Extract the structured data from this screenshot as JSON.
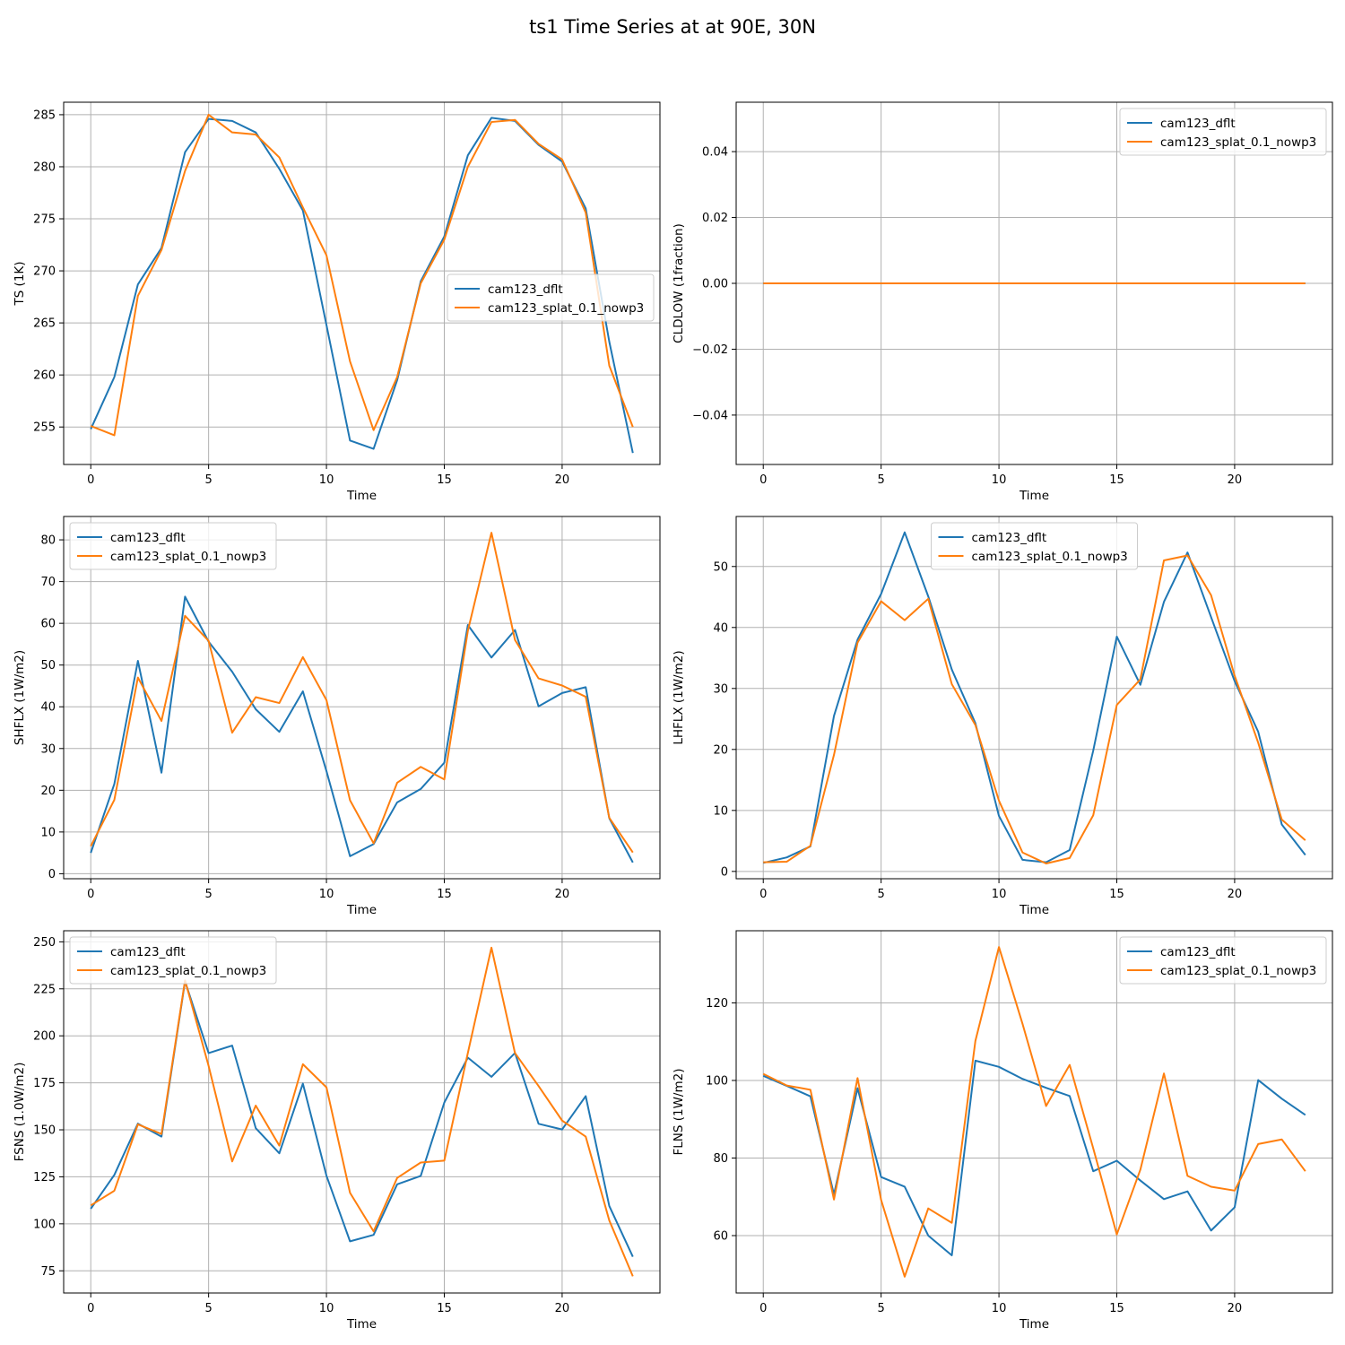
{
  "figure": {
    "title": "ts1 Time Series at at 90E, 30N"
  },
  "colors": {
    "series1": "#1f77b4",
    "series2": "#ff7f0e",
    "grid": "#b0b0b0",
    "axis": "#000000"
  },
  "chart_data": [
    {
      "type": "line",
      "xlabel": "Time",
      "ylabel": "TS (1K)",
      "xlim": [
        -1.15,
        24.15
      ],
      "ylim": [
        251.4,
        286.2
      ],
      "xticks": [
        0,
        5,
        10,
        15,
        20
      ],
      "yticks": [
        255,
        260,
        265,
        270,
        275,
        280,
        285
      ],
      "tick_decimals": 0,
      "grid": true,
      "legend_position": "center-right",
      "x": [
        0,
        1,
        2,
        3,
        4,
        5,
        6,
        7,
        8,
        9,
        10,
        11,
        12,
        13,
        14,
        15,
        16,
        17,
        18,
        19,
        20,
        21,
        22,
        23
      ],
      "series": [
        {
          "name": "cam123_dflt",
          "values": [
            254.8,
            259.8,
            268.7,
            272.2,
            281.4,
            284.6,
            284.4,
            283.3,
            279.8,
            275.8,
            264.8,
            253.7,
            252.9,
            259.5,
            269.0,
            273.3,
            281.1,
            284.7,
            284.4,
            282.1,
            280.5,
            276.0,
            263.2,
            252.5
          ]
        },
        {
          "name": "cam123_splat_0.1_nowp3",
          "values": [
            255.1,
            254.2,
            267.6,
            272.0,
            279.6,
            285.0,
            283.3,
            283.1,
            280.9,
            276.1,
            271.5,
            261.3,
            254.7,
            259.8,
            268.8,
            273.0,
            280.0,
            284.3,
            284.5,
            282.2,
            280.7,
            275.6,
            260.9,
            255.0
          ]
        }
      ]
    },
    {
      "type": "line",
      "xlabel": "Time",
      "ylabel": "CLDLOW (1fraction)",
      "xlim": [
        -1.15,
        24.15
      ],
      "ylim": [
        -0.055,
        0.055
      ],
      "xticks": [
        0,
        5,
        10,
        15,
        20
      ],
      "yticks": [
        -0.04,
        -0.02,
        0.0,
        0.02,
        0.04
      ],
      "tick_decimals": 2,
      "grid": true,
      "legend_position": "upper-right",
      "x": [
        0,
        1,
        2,
        3,
        4,
        5,
        6,
        7,
        8,
        9,
        10,
        11,
        12,
        13,
        14,
        15,
        16,
        17,
        18,
        19,
        20,
        21,
        22,
        23
      ],
      "series": [
        {
          "name": "cam123_dflt",
          "values": [
            0,
            0,
            0,
            0,
            0,
            0,
            0,
            0,
            0,
            0,
            0,
            0,
            0,
            0,
            0,
            0,
            0,
            0,
            0,
            0,
            0,
            0,
            0,
            0
          ]
        },
        {
          "name": "cam123_splat_0.1_nowp3",
          "values": [
            0,
            0,
            0,
            0,
            0,
            0,
            0,
            0,
            0,
            0,
            0,
            0,
            0,
            0,
            0,
            0,
            0,
            0,
            0,
            0,
            0,
            0,
            0,
            0
          ]
        }
      ]
    },
    {
      "type": "line",
      "xlabel": "Time",
      "ylabel": "SHFLX (1W/m2)",
      "xlim": [
        -1.15,
        24.15
      ],
      "ylim": [
        -1.2,
        85.6
      ],
      "xticks": [
        0,
        5,
        10,
        15,
        20
      ],
      "yticks": [
        0,
        10,
        20,
        30,
        40,
        50,
        60,
        70,
        80
      ],
      "tick_decimals": 0,
      "grid": true,
      "legend_position": "upper-left",
      "x": [
        0,
        1,
        2,
        3,
        4,
        5,
        6,
        7,
        8,
        9,
        10,
        11,
        12,
        13,
        14,
        15,
        16,
        17,
        18,
        19,
        20,
        21,
        22,
        23
      ],
      "series": [
        {
          "name": "cam123_dflt",
          "values": [
            5.0,
            21.5,
            51.0,
            24.2,
            66.4,
            55.6,
            48.4,
            39.4,
            34.0,
            43.7,
            24.6,
            4.2,
            7.1,
            17.1,
            20.3,
            26.6,
            59.6,
            51.8,
            58.4,
            40.1,
            43.3,
            44.7,
            13.3,
            2.7
          ]
        },
        {
          "name": "cam123_splat_0.1_nowp3",
          "values": [
            6.6,
            17.7,
            47.0,
            36.6,
            61.8,
            55.8,
            33.8,
            42.3,
            40.9,
            51.9,
            41.6,
            17.6,
            7.3,
            21.8,
            25.6,
            22.6,
            58.2,
            81.7,
            56.0,
            46.8,
            45.1,
            42.4,
            13.4,
            5.1
          ]
        }
      ]
    },
    {
      "type": "line",
      "xlabel": "Time",
      "ylabel": "LHFLX (1W/m2)",
      "xlim": [
        -1.15,
        24.15
      ],
      "ylim": [
        -1.2,
        58.2
      ],
      "xticks": [
        0,
        5,
        10,
        15,
        20
      ],
      "yticks": [
        0,
        10,
        20,
        30,
        40,
        50
      ],
      "tick_decimals": 0,
      "grid": true,
      "legend_position": "upper-center",
      "x": [
        0,
        1,
        2,
        3,
        4,
        5,
        6,
        7,
        8,
        9,
        10,
        11,
        12,
        13,
        14,
        15,
        16,
        17,
        18,
        19,
        20,
        21,
        22,
        23
      ],
      "series": [
        {
          "name": "cam123_dflt",
          "values": [
            1.4,
            2.3,
            4.1,
            25.5,
            38.0,
            45.5,
            55.6,
            45.1,
            33.1,
            24.3,
            9.1,
            1.9,
            1.5,
            3.5,
            19.8,
            38.5,
            30.6,
            44.2,
            52.3,
            41.7,
            31.2,
            22.9,
            7.7,
            2.7
          ]
        },
        {
          "name": "cam123_splat_0.1_nowp3",
          "values": [
            1.5,
            1.6,
            4.2,
            19.1,
            37.5,
            44.3,
            41.2,
            44.7,
            30.7,
            24.0,
            11.6,
            3.1,
            1.3,
            2.2,
            9.2,
            27.3,
            31.5,
            51.0,
            51.8,
            45.3,
            32.1,
            21.1,
            8.5,
            5.1
          ]
        }
      ]
    },
    {
      "type": "line",
      "xlabel": "Time",
      "ylabel": "FSNS (1.0W/m2)",
      "xlim": [
        -1.15,
        24.15
      ],
      "ylim": [
        63.2,
        255.9
      ],
      "xticks": [
        0,
        5,
        10,
        15,
        20
      ],
      "yticks": [
        75,
        100,
        125,
        150,
        175,
        200,
        225,
        250
      ],
      "tick_decimals": 0,
      "grid": true,
      "legend_position": "upper-left",
      "x": [
        0,
        1,
        2,
        3,
        4,
        5,
        6,
        7,
        8,
        9,
        10,
        11,
        12,
        13,
        14,
        15,
        16,
        17,
        18,
        19,
        20,
        21,
        22,
        23
      ],
      "series": [
        {
          "name": "cam123_dflt",
          "values": [
            108.0,
            126.0,
            153.3,
            146.4,
            229.0,
            190.8,
            194.8,
            150.9,
            137.5,
            174.6,
            125.6,
            90.7,
            94.1,
            121.0,
            125.5,
            164.5,
            188.4,
            178.2,
            190.9,
            153.2,
            150.2,
            167.9,
            109.5,
            82.5
          ]
        },
        {
          "name": "cam123_splat_0.1_nowp3",
          "values": [
            109.8,
            117.6,
            152.9,
            147.8,
            229.5,
            184.0,
            133.2,
            162.9,
            141.6,
            184.9,
            172.6,
            116.5,
            96.0,
            124.4,
            132.6,
            133.6,
            190.9,
            246.9,
            190.8,
            173.3,
            154.9,
            146.4,
            101.8,
            72.1
          ]
        }
      ]
    },
    {
      "type": "line",
      "xlabel": "Time",
      "ylabel": "FLNS (1W/m2)",
      "xlim": [
        -1.15,
        24.15
      ],
      "ylim": [
        45.2,
        138.6
      ],
      "xticks": [
        0,
        5,
        10,
        15,
        20
      ],
      "yticks": [
        60,
        80,
        100,
        120
      ],
      "tick_decimals": 0,
      "grid": true,
      "legend_position": "upper-right",
      "x": [
        0,
        1,
        2,
        3,
        4,
        5,
        6,
        7,
        8,
        9,
        10,
        11,
        12,
        13,
        14,
        15,
        16,
        17,
        18,
        19,
        20,
        21,
        22,
        23
      ],
      "series": [
        {
          "name": "cam123_dflt",
          "values": [
            101.2,
            98.6,
            95.9,
            70.6,
            98.0,
            75.1,
            72.6,
            60.0,
            54.9,
            105.1,
            103.5,
            100.4,
            98.1,
            96.0,
            76.6,
            79.3,
            74.2,
            69.4,
            71.4,
            61.3,
            67.3,
            100.1,
            95.3,
            91.1
          ]
        },
        {
          "name": "cam123_splat_0.1_nowp3",
          "values": [
            101.7,
            98.7,
            97.6,
            69.3,
            100.6,
            69.2,
            49.4,
            67.0,
            63.3,
            110.2,
            134.4,
            114.6,
            93.4,
            104.0,
            82.5,
            60.3,
            77.0,
            101.8,
            75.4,
            72.6,
            71.6,
            83.6,
            84.8,
            76.6
          ]
        }
      ]
    }
  ]
}
